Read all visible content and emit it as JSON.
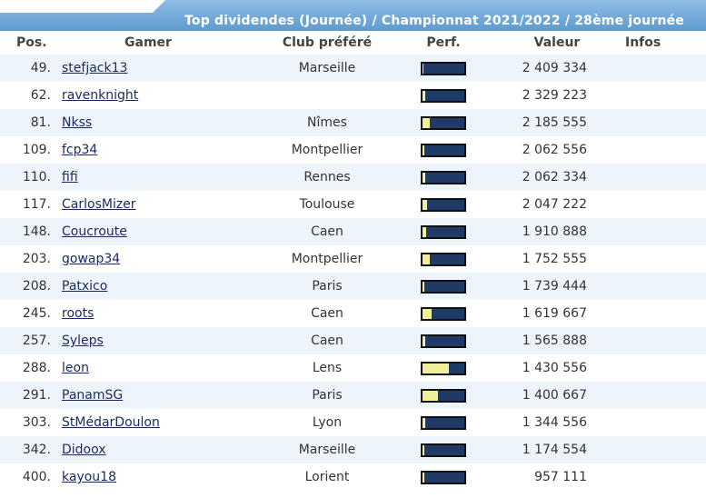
{
  "title": "Top dividendes (Journée) / Championnat 2021/2022 / 28ème journée",
  "headers": {
    "pos": "Pos.",
    "gamer": "Gamer",
    "club": "Club préféré",
    "perf": "Perf.",
    "value": "Valeur",
    "infos": "Infos"
  },
  "rows": [
    {
      "pos": "49.",
      "gamer": "stefjack13",
      "club": "Marseille",
      "perf": 0.02,
      "value": "2 409 334"
    },
    {
      "pos": "62.",
      "gamer": "ravenknight",
      "club": "",
      "perf": 0.06,
      "value": "2 329 223"
    },
    {
      "pos": "81.",
      "gamer": "Nkss",
      "club": "Nîmes",
      "perf": 0.18,
      "value": "2 185 555"
    },
    {
      "pos": "109.",
      "gamer": "fcp34",
      "club": "Montpellier",
      "perf": 0.04,
      "value": "2 062 556"
    },
    {
      "pos": "110.",
      "gamer": "fifi",
      "club": "Rennes",
      "perf": 0.06,
      "value": "2 062 334"
    },
    {
      "pos": "117.",
      "gamer": "CarlosMizer",
      "club": "Toulouse",
      "perf": 0.1,
      "value": "2 047 222"
    },
    {
      "pos": "148.",
      "gamer": "Coucroute",
      "club": "Caen",
      "perf": 0.08,
      "value": "1 910 888"
    },
    {
      "pos": "203.",
      "gamer": "gowap34",
      "club": "Montpellier",
      "perf": 0.18,
      "value": "1 752 555"
    },
    {
      "pos": "208.",
      "gamer": "Patxico",
      "club": "Paris",
      "perf": 0.04,
      "value": "1 739 444"
    },
    {
      "pos": "245.",
      "gamer": "roots",
      "club": "Caen",
      "perf": 0.22,
      "value": "1 619 667"
    },
    {
      "pos": "257.",
      "gamer": "Syleps",
      "club": "Caen",
      "perf": 0.06,
      "value": "1 565 888"
    },
    {
      "pos": "288.",
      "gamer": "leon",
      "club": "Lens",
      "perf": 0.62,
      "value": "1 430 556"
    },
    {
      "pos": "291.",
      "gamer": "PanamSG",
      "club": "Paris",
      "perf": 0.36,
      "value": "1 400 667"
    },
    {
      "pos": "303.",
      "gamer": "StMédarDoulon",
      "club": "Lyon",
      "perf": 0.06,
      "value": "1 344 556"
    },
    {
      "pos": "342.",
      "gamer": "Didoox",
      "club": "Marseille",
      "perf": 0.04,
      "value": "1 174 554"
    },
    {
      "pos": "400.",
      "gamer": "kayou18",
      "club": "Lorient",
      "perf": 0.04,
      "value": "957 111"
    }
  ]
}
